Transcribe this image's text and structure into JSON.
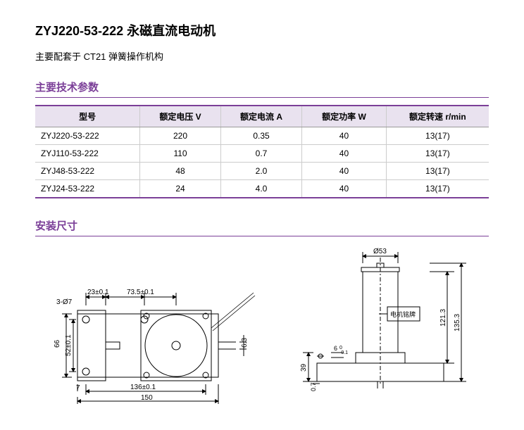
{
  "title": "ZYJ220-53-222 永磁直流电动机",
  "subtitle": "主要配套于 CT21 弹簧操作机构",
  "section_params": "主要技术参数",
  "section_dims": "安装尺寸",
  "table": {
    "headers": [
      "型号",
      "额定电压 V",
      "额定电流 A",
      "额定功率 W",
      "额定转速 r/min"
    ],
    "rows": [
      [
        "ZYJ220-53-222",
        "220",
        "0.35",
        "40",
        "13(17)"
      ],
      [
        "ZYJ110-53-222",
        "110",
        "0.7",
        "40",
        "13(17)"
      ],
      [
        "ZYJ48-53-222",
        "48",
        "2.0",
        "40",
        "13(17)"
      ],
      [
        "ZYJ24-53-222",
        "24",
        "4.0",
        "40",
        "13(17)"
      ]
    ],
    "header_bg": "#e9e2ef",
    "border_color": "#7b3f98"
  },
  "diagram": {
    "left": {
      "hole_label": "3-Ø7",
      "dim_23": "23±0.1",
      "dim_735": "73.5±0.1",
      "dim_66": "66",
      "dim_52": "52±0.1",
      "dim_7": "7",
      "dim_136": "136±0.1",
      "dim_150": "150",
      "dim_63": "6.3"
    },
    "right": {
      "dim_53": "Ø53",
      "nameplate": "电机铭牌",
      "dim_6": "6",
      "dim_tol": "-0.1",
      "dim_tol0": "0",
      "dim_07": "0.7",
      "dim_39": "39",
      "dim_1213": "121.3",
      "dim_1353": "135.3"
    }
  }
}
